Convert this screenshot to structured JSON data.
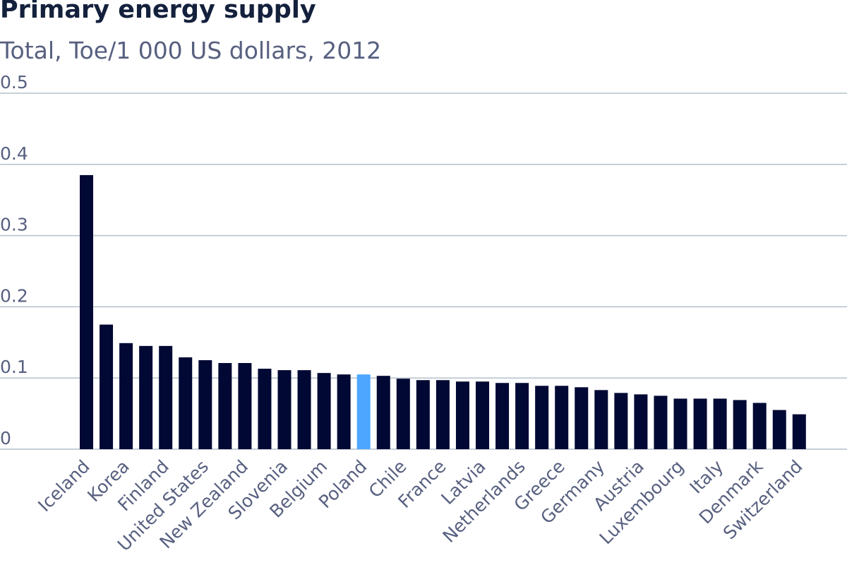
{
  "chart_data": {
    "type": "bar",
    "title": "Primary energy supply",
    "subtitle": "Total, Toe/1 000 US dollars, 2012",
    "ylim": [
      0,
      0.5
    ],
    "yticks": [
      0,
      0.1,
      0.2,
      0.3,
      0.4,
      0.5
    ],
    "ytick_labels": [
      "0",
      "0.1",
      "0.2",
      "0.3",
      "0.4",
      "0.5"
    ],
    "grid": true,
    "colors": {
      "bar": "#000833",
      "highlight": "#4da6ff",
      "grid": "#b4c0cc",
      "text": "#586080",
      "title": "#14213d"
    },
    "highlight_category": "Poland",
    "categories": [
      "Iceland",
      "",
      "Korea",
      "",
      "Finland",
      "",
      "United States",
      "",
      "New Zealand",
      "",
      "Slovenia",
      "",
      "Belgium",
      "",
      "Poland",
      "",
      "Chile",
      "",
      "France",
      "",
      "Latvia",
      "",
      "Netherlands",
      "",
      "Greece",
      "",
      "Germany",
      "",
      "Austria",
      "",
      "Luxembourg",
      "",
      "Italy",
      "",
      "Denmark",
      "",
      "Switzerland"
    ],
    "values": [
      0.385,
      0.175,
      0.149,
      0.145,
      0.145,
      0.129,
      0.125,
      0.121,
      0.121,
      0.113,
      0.111,
      0.111,
      0.107,
      0.105,
      0.105,
      0.103,
      0.099,
      0.097,
      0.097,
      0.095,
      0.095,
      0.093,
      0.093,
      0.089,
      0.089,
      0.087,
      0.083,
      0.079,
      0.077,
      0.075,
      0.071,
      0.071,
      0.071,
      0.069,
      0.065,
      0.055,
      0.049
    ]
  }
}
